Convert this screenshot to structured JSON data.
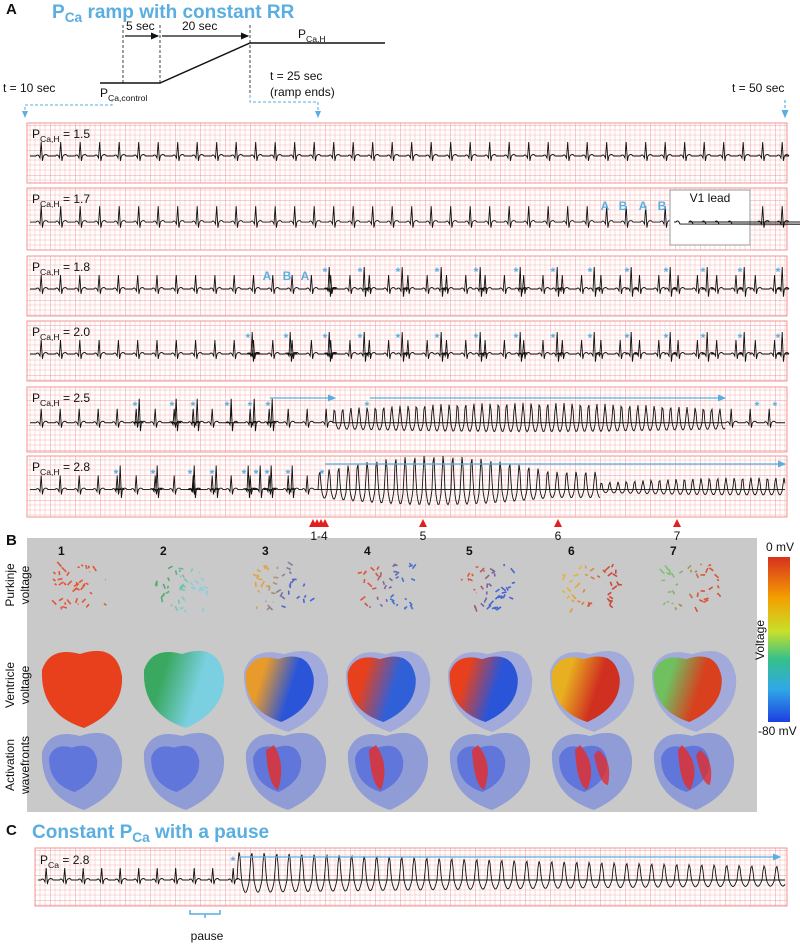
{
  "panel_a": {
    "label": "A",
    "title": {
      "p": "P",
      "sub": "Ca",
      "rest": " ramp with constant RR"
    },
    "schematic": {
      "dur1": "5 sec",
      "dur2": "20 sec",
      "high": {
        "p": "P",
        "sub": "Ca,H"
      },
      "control": {
        "p": "P",
        "sub": "Ca,control"
      }
    },
    "times": {
      "start": "t = 10 sec",
      "ramp_end": [
        "t = 25 sec",
        "(ramp ends)"
      ],
      "end": "t = 50 sec"
    },
    "traces": [
      {
        "label": {
          "p": "P",
          "sub": "Ca,H",
          "rest": " = 1.5"
        },
        "annotations": []
      },
      {
        "label": {
          "p": "P",
          "sub": "Ca,H",
          "rest": " = 1.7"
        },
        "annotations": [
          "A",
          "B",
          "A",
          "B"
        ]
      },
      {
        "label": {
          "p": "P",
          "sub": "Ca,H",
          "rest": " = 1.8"
        },
        "annotations": [
          "A",
          "B",
          "A",
          "*",
          "*",
          "*",
          "*",
          "*",
          "*",
          "*",
          "*",
          "*",
          "*",
          "*",
          "*",
          "*"
        ]
      },
      {
        "label": {
          "p": "P",
          "sub": "Ca,H",
          "rest": " = 2.0"
        },
        "annotations": [
          "*",
          "*",
          "*",
          "*",
          "*",
          "*",
          "*",
          "*",
          "*",
          "*",
          "*",
          "*",
          "*",
          "*",
          "*"
        ]
      },
      {
        "label": {
          "p": "P",
          "sub": "Ca,H",
          "rest": " = 2.5"
        },
        "annotations": [
          "*",
          "*",
          "*",
          "*",
          "*",
          "*",
          "*",
          "*",
          "*"
        ]
      },
      {
        "label": {
          "p": "P",
          "sub": "Ca,H",
          "rest": " = 2.8"
        },
        "annotations": [
          "*",
          "*",
          "*",
          "*",
          "*",
          "*",
          "*",
          "*",
          "*"
        ]
      }
    ],
    "inset": "V1 lead",
    "markers": [
      "1-4",
      "5",
      "6",
      "7"
    ]
  },
  "panel_b": {
    "label": "B",
    "columns": [
      "1",
      "2",
      "3",
      "4",
      "5",
      "6",
      "7"
    ],
    "rows": [
      [
        "Purkinje",
        "voltage"
      ],
      [
        "Ventricle",
        "voltage"
      ],
      [
        "Activation",
        "wavefronts"
      ]
    ],
    "colorbar": {
      "max": "0 mV",
      "title": "Voltage",
      "min": "-80 mV"
    }
  },
  "panel_c": {
    "label": "C",
    "title": {
      "pre": "Constant ",
      "p": "P",
      "sub": "Ca",
      "rest": " with a pause"
    },
    "trace": {
      "label": {
        "p": "P",
        "sub": "Ca",
        "rest": " = 2.8"
      },
      "annotations": [
        "*"
      ]
    },
    "pause": "pause"
  }
}
